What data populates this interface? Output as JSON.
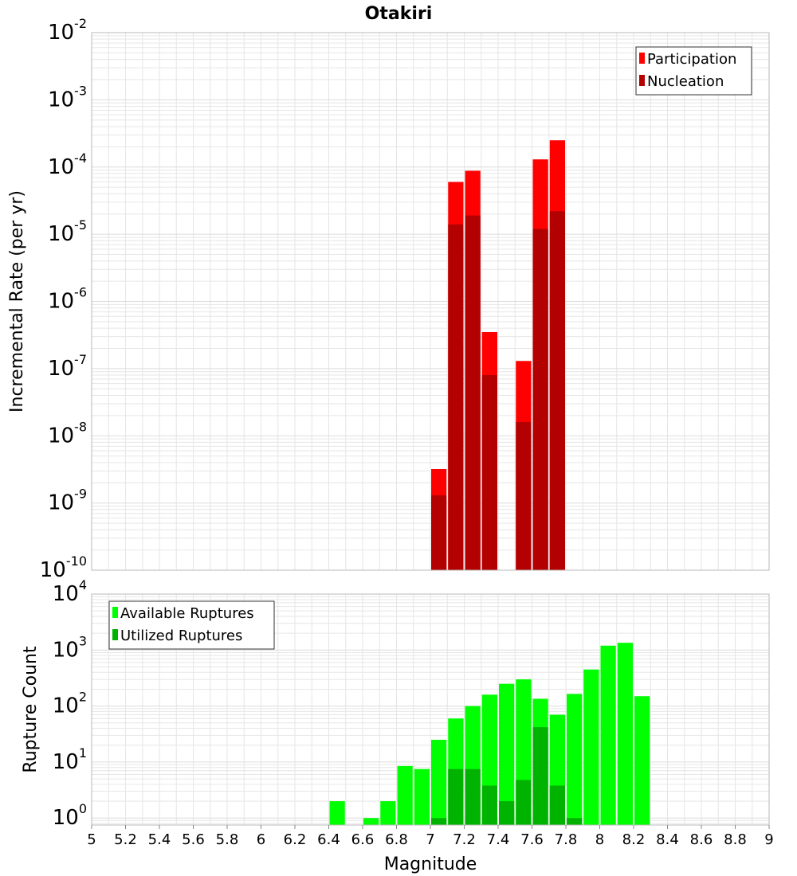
{
  "title": "Otakiri",
  "colors": {
    "participation": "#ff0000",
    "nucleation": "#b30000",
    "available": "#00ff00",
    "utilized": "#00b300",
    "grid": "#e6e6e6",
    "frame": "#b8b8b8"
  },
  "chart_data": [
    {
      "type": "bar",
      "panel": "top",
      "ylabel": "Incremental Rate (per yr)",
      "yscale": "log",
      "ylim": [
        1e-10,
        0.01
      ],
      "ytick_exponents": [
        "-10",
        "-9",
        "-8",
        "-7",
        "-6",
        "-5",
        "-4",
        "-3",
        "-2"
      ],
      "ytick_base": "10",
      "xlim": [
        5,
        9
      ],
      "bin_width": 0.1,
      "grid": true,
      "legend_position": "top-right",
      "series": [
        {
          "name": "Participation",
          "color": "#ff0000",
          "points": [
            {
              "x": 7.05,
              "y": 3.2e-09
            },
            {
              "x": 7.15,
              "y": 6e-05
            },
            {
              "x": 7.25,
              "y": 8.8e-05
            },
            {
              "x": 7.35,
              "y": 3.5e-07
            },
            {
              "x": 7.55,
              "y": 1.3e-07
            },
            {
              "x": 7.65,
              "y": 0.00013
            },
            {
              "x": 7.75,
              "y": 0.00025
            }
          ]
        },
        {
          "name": "Nucleation",
          "color": "#b30000",
          "points": [
            {
              "x": 7.05,
              "y": 1.3e-09
            },
            {
              "x": 7.15,
              "y": 1.4e-05
            },
            {
              "x": 7.25,
              "y": 1.9e-05
            },
            {
              "x": 7.35,
              "y": 8e-08
            },
            {
              "x": 7.55,
              "y": 1.6e-08
            },
            {
              "x": 7.65,
              "y": 1.2e-05
            },
            {
              "x": 7.75,
              "y": 2.2e-05
            }
          ]
        }
      ]
    },
    {
      "type": "bar",
      "panel": "bottom",
      "ylabel": "Rupture Count",
      "xlabel": "Magnitude",
      "yscale": "log",
      "ylim": [
        0.75,
        10000
      ],
      "ytick_exponents": [
        "0",
        "1",
        "2",
        "3",
        "4"
      ],
      "ytick_base": "10",
      "xlim": [
        5,
        9
      ],
      "xticks": [
        "5",
        "5.2",
        "5.4",
        "5.6",
        "5.8",
        "6",
        "6.2",
        "6.4",
        "6.6",
        "6.8",
        "7",
        "7.2",
        "7.4",
        "7.6",
        "7.8",
        "8",
        "8.2",
        "8.4",
        "8.6",
        "8.8",
        "9"
      ],
      "bin_width": 0.1,
      "grid": true,
      "legend_position": "top-left",
      "series": [
        {
          "name": "Available Ruptures",
          "color": "#00ff00",
          "points": [
            {
              "x": 6.45,
              "y": 2
            },
            {
              "x": 6.65,
              "y": 1
            },
            {
              "x": 6.75,
              "y": 2
            },
            {
              "x": 6.85,
              "y": 8.5
            },
            {
              "x": 6.95,
              "y": 7.5
            },
            {
              "x": 7.05,
              "y": 25
            },
            {
              "x": 7.15,
              "y": 60
            },
            {
              "x": 7.25,
              "y": 100
            },
            {
              "x": 7.35,
              "y": 160
            },
            {
              "x": 7.45,
              "y": 250
            },
            {
              "x": 7.55,
              "y": 300
            },
            {
              "x": 7.65,
              "y": 135
            },
            {
              "x": 7.75,
              "y": 70
            },
            {
              "x": 7.85,
              "y": 165
            },
            {
              "x": 7.95,
              "y": 450
            },
            {
              "x": 8.05,
              "y": 1200
            },
            {
              "x": 8.15,
              "y": 1350
            },
            {
              "x": 8.25,
              "y": 150
            }
          ]
        },
        {
          "name": "Utilized Ruptures",
          "color": "#00b300",
          "points": [
            {
              "x": 7.05,
              "y": 1
            },
            {
              "x": 7.15,
              "y": 7.5
            },
            {
              "x": 7.25,
              "y": 7.5
            },
            {
              "x": 7.35,
              "y": 3.8
            },
            {
              "x": 7.45,
              "y": 2
            },
            {
              "x": 7.55,
              "y": 4.8
            },
            {
              "x": 7.65,
              "y": 42
            },
            {
              "x": 7.75,
              "y": 3.8
            },
            {
              "x": 7.85,
              "y": 1
            }
          ]
        }
      ]
    }
  ]
}
